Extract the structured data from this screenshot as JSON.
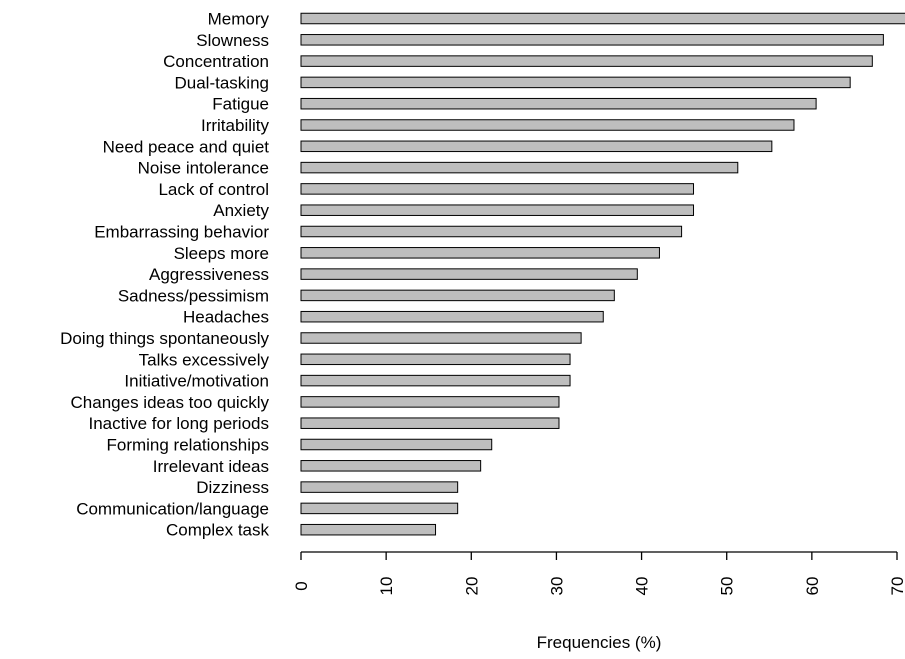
{
  "chart_data": {
    "type": "bar",
    "orientation": "horizontal",
    "title": "",
    "xlabel": "Frequencies (%)",
    "ylabel": "",
    "xlim": [
      0,
      70
    ],
    "x_ticks": [
      0,
      10,
      20,
      30,
      40,
      50,
      60,
      70
    ],
    "grid": false,
    "bar_color": "#bebebe",
    "bar_edge_color": "#000000",
    "categories": [
      "Memory",
      "Slowness",
      "Concentration",
      "Dual-tasking",
      "Fatigue",
      "Irritability",
      "Need peace and quiet",
      "Noise intolerance",
      "Lack of control",
      "Anxiety",
      "Embarrassing behavior",
      "Sleeps more",
      "Aggressiveness",
      "Sadness/pessimism",
      "Headaches",
      "Doing things spontaneously",
      "Talks excessively",
      "Initiative/motivation",
      "Changes ideas too quickly",
      "Inactive for long periods",
      "Forming relationships",
      "Irrelevant ideas",
      "Dizziness",
      "Communication/language",
      "Complex task"
    ],
    "values": [
      71,
      68.4,
      67.1,
      64.5,
      60.5,
      57.9,
      55.3,
      51.3,
      46.1,
      46.1,
      44.7,
      42.1,
      39.5,
      36.8,
      35.5,
      32.9,
      31.6,
      31.6,
      30.3,
      30.3,
      22.4,
      21.1,
      18.4,
      18.4,
      15.8
    ]
  }
}
